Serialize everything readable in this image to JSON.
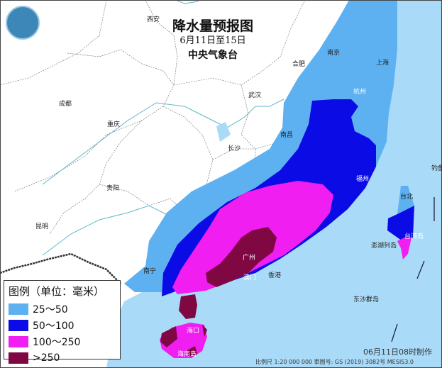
{
  "title": "降水量预报图",
  "date_range": "6月11日至15日",
  "issuer": "中央气象台",
  "colors": {
    "land": "#ffffff",
    "sea": "#a9dbf9",
    "c25_50": "#5eb1f1",
    "c50_100": "#0b0be6",
    "c100_250": "#f01ef0",
    "c250": "#7f0843",
    "river": "#5ab8c8"
  },
  "cities": [
    {
      "name": "西安"
    },
    {
      "name": "合肥"
    },
    {
      "name": "南京"
    },
    {
      "name": "上海"
    },
    {
      "name": "成都"
    },
    {
      "name": "武汉"
    },
    {
      "name": "杭州"
    },
    {
      "name": "重庆"
    },
    {
      "name": "南昌"
    },
    {
      "name": "长沙"
    },
    {
      "name": "贵阳"
    },
    {
      "name": "福州"
    },
    {
      "name": "钓鱼"
    },
    {
      "name": "台北"
    },
    {
      "name": "昆明"
    },
    {
      "name": "台湾岛"
    },
    {
      "name": "澎湖列岛"
    },
    {
      "name": "广州"
    },
    {
      "name": "南宁"
    },
    {
      "name": "澳门"
    },
    {
      "name": "香港"
    },
    {
      "name": "东沙群岛"
    },
    {
      "name": "海口"
    },
    {
      "name": "海南岛"
    }
  ],
  "legend": {
    "title": "图例（单位：毫米）",
    "items": [
      {
        "label": "25～50",
        "color": "#5eb1f1"
      },
      {
        "label": "50～100",
        "color": "#0b0be6"
      },
      {
        "label": "100～250",
        "color": "#f01ef0"
      },
      {
        "label": ">250",
        "color": "#7f0843"
      }
    ]
  },
  "footer": {
    "made": "06月11日08时制作",
    "scale": "比例尺 1:20 000 000  审图号: GS (2019) 3082号 MESIS3.0"
  }
}
